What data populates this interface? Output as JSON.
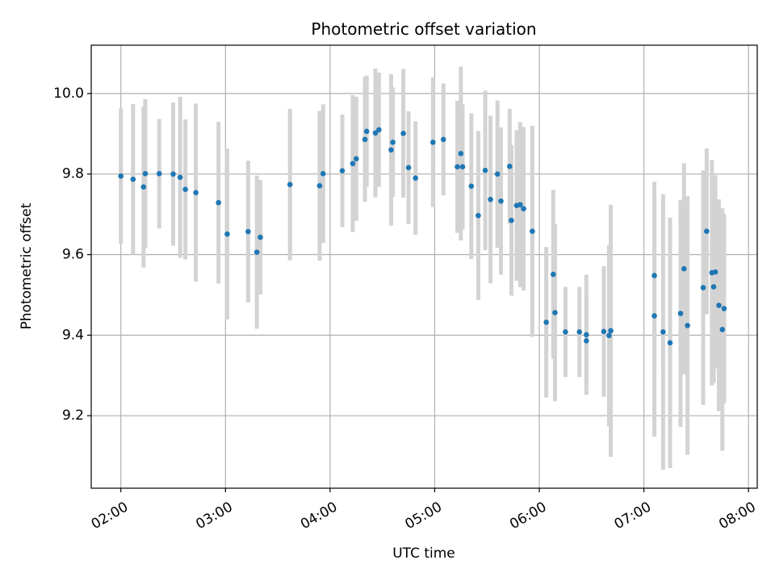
{
  "chart_data": {
    "type": "scatter",
    "title": "Photometric offset variation",
    "xlabel": "UTC time",
    "ylabel": "Photometric offset",
    "x_ticks": [
      "02:00",
      "03:00",
      "04:00",
      "05:00",
      "06:00",
      "07:00",
      "08:00"
    ],
    "y_ticks": [
      "9.2",
      "9.4",
      "9.6",
      "9.8",
      "10.0"
    ],
    "xlim": [
      "01:43",
      "08:05"
    ],
    "ylim": [
      9.02,
      10.12
    ],
    "grid": true,
    "colors": {
      "marker": "#1f77b4",
      "errorbar": "#d3d3d3",
      "grid": "#b0b0b0"
    },
    "points": [
      {
        "x": "02:00",
        "y": 9.795,
        "err": 0.168
      },
      {
        "x": "02:07",
        "y": 9.787,
        "err": 0.187
      },
      {
        "x": "02:13",
        "y": 9.768,
        "err": 0.2
      },
      {
        "x": "02:14",
        "y": 9.801,
        "err": 0.185
      },
      {
        "x": "02:22",
        "y": 9.801,
        "err": 0.136
      },
      {
        "x": "02:30",
        "y": 9.8,
        "err": 0.178
      },
      {
        "x": "02:34",
        "y": 9.792,
        "err": 0.2
      },
      {
        "x": "02:37",
        "y": 9.762,
        "err": 0.174
      },
      {
        "x": "02:43",
        "y": 9.754,
        "err": 0.221
      },
      {
        "x": "02:56",
        "y": 9.729,
        "err": 0.201
      },
      {
        "x": "03:01",
        "y": 9.651,
        "err": 0.212
      },
      {
        "x": "03:13",
        "y": 9.657,
        "err": 0.176
      },
      {
        "x": "03:18",
        "y": 9.606,
        "err": 0.19
      },
      {
        "x": "03:20",
        "y": 9.643,
        "err": 0.142
      },
      {
        "x": "03:37",
        "y": 9.774,
        "err": 0.188
      },
      {
        "x": "03:54",
        "y": 9.771,
        "err": 0.186
      },
      {
        "x": "03:56",
        "y": 9.801,
        "err": 0.172
      },
      {
        "x": "04:07",
        "y": 9.808,
        "err": 0.14
      },
      {
        "x": "04:13",
        "y": 9.826,
        "err": 0.17
      },
      {
        "x": "04:15",
        "y": 9.838,
        "err": 0.154
      },
      {
        "x": "04:20",
        "y": 9.886,
        "err": 0.155
      },
      {
        "x": "04:21",
        "y": 9.906,
        "err": 0.138
      },
      {
        "x": "04:26",
        "y": 9.902,
        "err": 0.16
      },
      {
        "x": "04:28",
        "y": 9.91,
        "err": 0.142
      },
      {
        "x": "04:35",
        "y": 9.86,
        "err": 0.188
      },
      {
        "x": "04:36",
        "y": 9.879,
        "err": 0.136
      },
      {
        "x": "04:42",
        "y": 9.901,
        "err": 0.16
      },
      {
        "x": "04:45",
        "y": 9.816,
        "err": 0.14
      },
      {
        "x": "04:49",
        "y": 9.79,
        "err": 0.141
      },
      {
        "x": "04:59",
        "y": 9.879,
        "err": 0.161
      },
      {
        "x": "05:05",
        "y": 9.886,
        "err": 0.139
      },
      {
        "x": "05:13",
        "y": 9.818,
        "err": 0.164
      },
      {
        "x": "05:15",
        "y": 9.851,
        "err": 0.216
      },
      {
        "x": "05:16",
        "y": 9.818,
        "err": 0.155
      },
      {
        "x": "05:21",
        "y": 9.77,
        "err": 0.181
      },
      {
        "x": "05:25",
        "y": 9.697,
        "err": 0.21
      },
      {
        "x": "05:29",
        "y": 9.809,
        "err": 0.198
      },
      {
        "x": "05:32",
        "y": 9.737,
        "err": 0.208
      },
      {
        "x": "05:36",
        "y": 9.8,
        "err": 0.183
      },
      {
        "x": "05:38",
        "y": 9.733,
        "err": 0.183
      },
      {
        "x": "05:43",
        "y": 9.819,
        "err": 0.143
      },
      {
        "x": "05:44",
        "y": 9.685,
        "err": 0.187
      },
      {
        "x": "05:47",
        "y": 9.722,
        "err": 0.187
      },
      {
        "x": "05:49",
        "y": 9.724,
        "err": 0.205
      },
      {
        "x": "05:51",
        "y": 9.714,
        "err": 0.203
      },
      {
        "x": "05:56",
        "y": 9.658,
        "err": 0.262
      },
      {
        "x": "06:04",
        "y": 9.432,
        "err": 0.187
      },
      {
        "x": "06:08",
        "y": 9.551,
        "err": 0.21
      },
      {
        "x": "06:09",
        "y": 9.456,
        "err": 0.22
      },
      {
        "x": "06:15",
        "y": 9.408,
        "err": 0.112
      },
      {
        "x": "06:23",
        "y": 9.408,
        "err": 0.112
      },
      {
        "x": "06:27",
        "y": 9.386,
        "err": 0.113
      },
      {
        "x": "06:27",
        "y": 9.401,
        "err": 0.149
      },
      {
        "x": "06:37",
        "y": 9.409,
        "err": 0.162
      },
      {
        "x": "06:40",
        "y": 9.399,
        "err": 0.225
      },
      {
        "x": "06:41",
        "y": 9.411,
        "err": 0.313
      },
      {
        "x": "07:06",
        "y": 9.548,
        "err": 0.233
      },
      {
        "x": "07:06",
        "y": 9.448,
        "err": 0.3
      },
      {
        "x": "07:11",
        "y": 9.408,
        "err": 0.342
      },
      {
        "x": "07:15",
        "y": 9.381,
        "err": 0.311
      },
      {
        "x": "07:21",
        "y": 9.454,
        "err": 0.282
      },
      {
        "x": "07:23",
        "y": 9.565,
        "err": 0.262
      },
      {
        "x": "07:25",
        "y": 9.424,
        "err": 0.321
      },
      {
        "x": "07:34",
        "y": 9.518,
        "err": 0.291
      },
      {
        "x": "07:36",
        "y": 9.658,
        "err": 0.206
      },
      {
        "x": "07:39",
        "y": 9.555,
        "err": 0.28
      },
      {
        "x": "07:40",
        "y": 9.52,
        "err": 0.239
      },
      {
        "x": "07:41",
        "y": 9.557,
        "err": 0.24
      },
      {
        "x": "07:43",
        "y": 9.474,
        "err": 0.263
      },
      {
        "x": "07:45",
        "y": 9.414,
        "err": 0.301
      },
      {
        "x": "07:46",
        "y": 9.466,
        "err": 0.235
      }
    ]
  }
}
